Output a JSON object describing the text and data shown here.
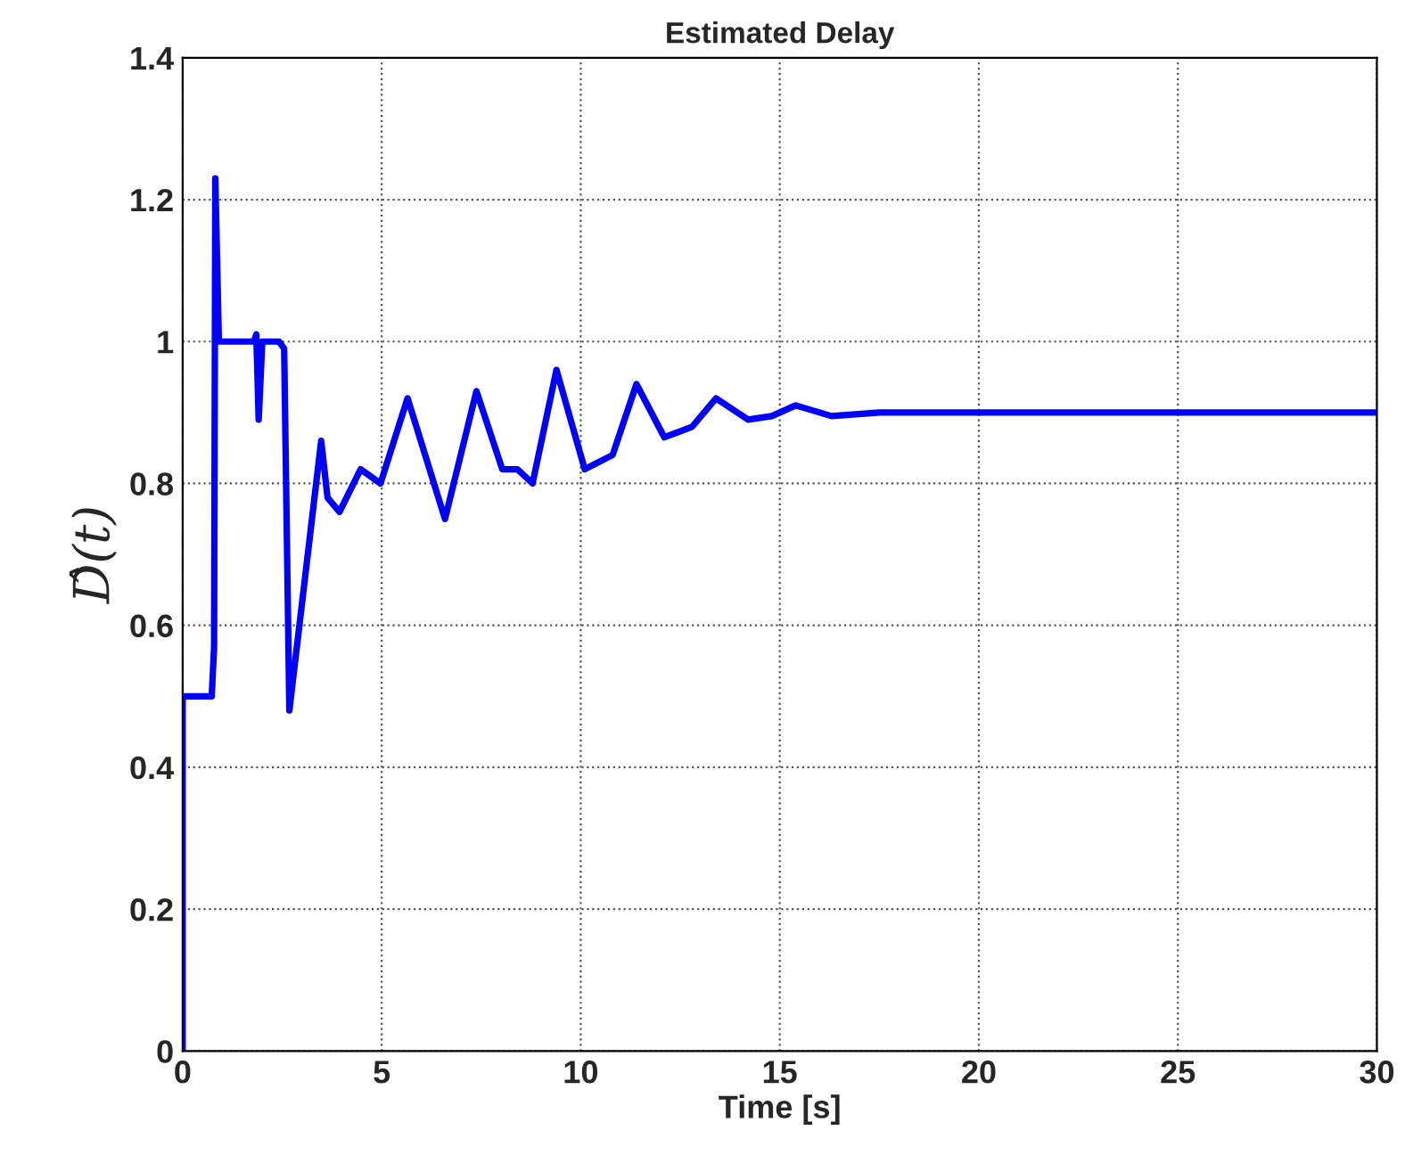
{
  "chart_data": {
    "type": "line",
    "title": "Estimated Delay",
    "xlabel": "Time [s]",
    "ylabel": "D̂(t)",
    "xlim": [
      0,
      30
    ],
    "ylim": [
      0,
      1.4
    ],
    "xticks": [
      0,
      5,
      10,
      15,
      20,
      25,
      30
    ],
    "yticks": [
      0,
      0.2,
      0.4,
      0.6,
      0.8,
      1,
      1.2,
      1.4
    ],
    "grid": true,
    "legend": false,
    "marker": "none",
    "line_style": "solid",
    "series": [
      {
        "color": "#0000ff",
        "x": [
          0,
          0,
          0.73,
          0.79,
          0.82,
          0.91,
          1.79,
          1.85,
          1.91,
          2.0,
          2.42,
          2.55,
          2.68,
          3.48,
          3.64,
          3.94,
          4.47,
          4.97,
          5.65,
          6.59,
          7.38,
          8.03,
          8.41,
          8.79,
          9.39,
          10.1,
          10.8,
          11.4,
          12.1,
          12.8,
          13.4,
          14.2,
          14.8,
          15.4,
          16.3,
          17.5,
          30
        ],
        "values": [
          0,
          0.5,
          0.5,
          0.57,
          1.23,
          1.0,
          1.0,
          1.01,
          0.89,
          1.0,
          1.0,
          0.99,
          0.48,
          0.86,
          0.78,
          0.76,
          0.82,
          0.8,
          0.92,
          0.75,
          0.93,
          0.82,
          0.82,
          0.8,
          0.96,
          0.82,
          0.84,
          0.94,
          0.865,
          0.88,
          0.92,
          0.89,
          0.895,
          0.91,
          0.895,
          0.9,
          0.9
        ]
      }
    ]
  }
}
